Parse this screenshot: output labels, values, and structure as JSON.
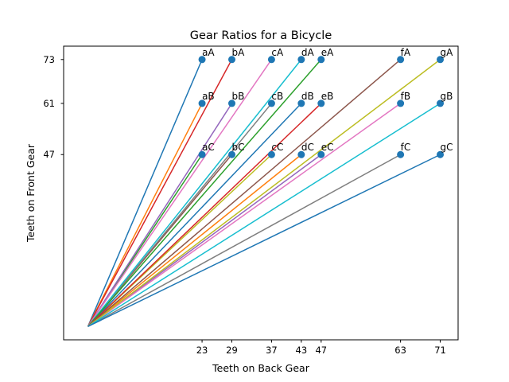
{
  "chart_data": {
    "type": "line",
    "title": "Gear Ratios for a Bicycle",
    "xlabel": "Teeth on Back Gear",
    "ylabel": "Teeth on Front Gear",
    "xlim": [
      -4.9,
      74.6
    ],
    "ylim": [
      -3.65,
      76.65
    ],
    "grid": false,
    "origin": {
      "x": 0,
      "y": 0
    },
    "x_ticks": [
      23,
      29,
      37,
      43,
      47,
      63,
      71
    ],
    "y_ticks": [
      47,
      61,
      73
    ],
    "back_gears": [
      {
        "name": "a",
        "teeth": 23
      },
      {
        "name": "b",
        "teeth": 29
      },
      {
        "name": "c",
        "teeth": 37
      },
      {
        "name": "d",
        "teeth": 43
      },
      {
        "name": "e",
        "teeth": 47
      },
      {
        "name": "f",
        "teeth": 63
      },
      {
        "name": "g",
        "teeth": 71
      }
    ],
    "front_gears": [
      {
        "name": "A",
        "teeth": 73
      },
      {
        "name": "B",
        "teeth": 61
      },
      {
        "name": "C",
        "teeth": 47
      }
    ],
    "series_colors": [
      "#1f77b4",
      "#ff7f0e",
      "#2ca02c",
      "#d62728",
      "#9467bd",
      "#8c564b",
      "#e377c2",
      "#7f7f7f",
      "#bcbd22",
      "#17becf"
    ],
    "point_color": "#1f77b4"
  }
}
